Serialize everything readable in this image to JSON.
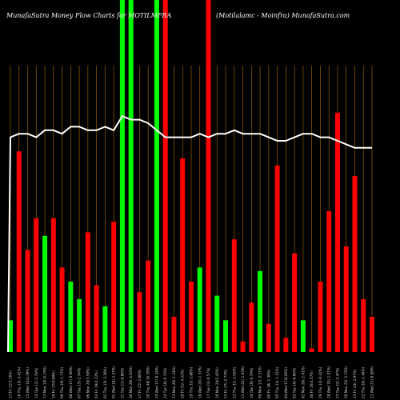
{
  "chart_data": {
    "type": "bar",
    "title": "MunafaSutra  Money Flow  Charts for MOTILMFRA",
    "subtitle": "(Motilalamc -  Moinfra) MunafaSutra.com",
    "grid": true,
    "ylim": [
      0,
      100
    ],
    "colors": {
      "background": "#000000",
      "grid": "#b06a00",
      "up": "#00ff00",
      "down": "#ff0000",
      "line": "#ffffff",
      "text": "#ffffff"
    },
    "categories": [
      "17 Fri 11(3.16%)",
      "16 Thu 15(-3.41%)",
      "15 Wed 14(4.39%)",
      "14 Tue 12(-2.78%)",
      "13 Mon 15(-0.23%)",
      "10 Fri 17(0.89%)",
      "09 Thu 16(-1.77%)",
      "08 Wed 17(-0.90%)",
      "07 Tue 15(-2.74%)",
      "06 Mon 20(3.59%)",
      "03 Fri 19(4.22%)",
      "02 Thu 15(-3.30%)",
      "01 Wed 18(-1.47%)",
      "31 Tue 21(-0.86%)",
      "30 Mon 20(-4.92%)",
      "27 Fri 21(-2.80%)",
      "26 Thu 48(16.78%)",
      "25 Wed 17(-0.34%)",
      "24 Tue 19(-0.74%)",
      "23 Mon 20(-1.24%)",
      "20 Fri 51(-4.22%)",
      "19 Thu 32(-3.88%)",
      "18 Wed 20(-1.37%)",
      "17 Tue 23(-0.57%)",
      "16 Mon 24(5.45%)",
      "13 Fri 27(-2.73%)",
      "12 Thu 31(-2.03%)",
      "11 Wed 22(-1.93%)",
      "10 Tue 19(-0.79%)",
      "09 Mon 17(-3.31%)",
      "06 Fri 18(-1.38%)",
      "05 Thu 13(-1.21%)",
      "04 Wed 17(0.85%)",
      "03 Tue 19(-0.66%)",
      "02 Mon 20(-2.41%)",
      "30 Fri 16(4.57%)",
      "29 Thu 14(-0.42%)",
      "28 Wed 19(-1.01%)",
      "27 Tue 22(-3.47%)",
      "26 Mon 23(-3.73%)",
      "23 Fri 24(-2.97%)",
      "22 Thu 20(-1.44%)",
      "21 Wed 21(-0.88%)"
    ],
    "colors_by_bar": [
      "up",
      "down",
      "down",
      "down",
      "up",
      "down",
      "down",
      "up",
      "up",
      "down",
      "down",
      "up",
      "down",
      "up",
      "up",
      "down",
      "down",
      "up",
      "down",
      "down",
      "down",
      "down",
      "up",
      "down",
      "up",
      "up",
      "down",
      "down",
      "down",
      "up",
      "down",
      "down",
      "down",
      "down",
      "up",
      "down",
      "down",
      "down",
      "down",
      "down",
      "down",
      "down",
      "down"
    ],
    "values": [
      9,
      57,
      29,
      38,
      33,
      38,
      24,
      20,
      15,
      34,
      19,
      13,
      37,
      100,
      100,
      17,
      26,
      100,
      100,
      10,
      55,
      20,
      24,
      100,
      16,
      9,
      32,
      3,
      14,
      23,
      8,
      53,
      4,
      28,
      9,
      1,
      20,
      40,
      68,
      30,
      50,
      15,
      10
    ],
    "line": [
      61,
      62,
      62,
      61,
      63,
      63,
      62,
      64,
      64,
      63,
      63,
      64,
      63,
      67,
      66,
      66,
      65,
      63,
      61,
      61,
      61,
      61,
      62,
      61,
      62,
      62,
      63,
      62,
      62,
      62,
      61,
      60,
      60,
      61,
      62,
      62,
      61,
      61,
      60,
      59,
      58,
      58,
      58
    ]
  }
}
